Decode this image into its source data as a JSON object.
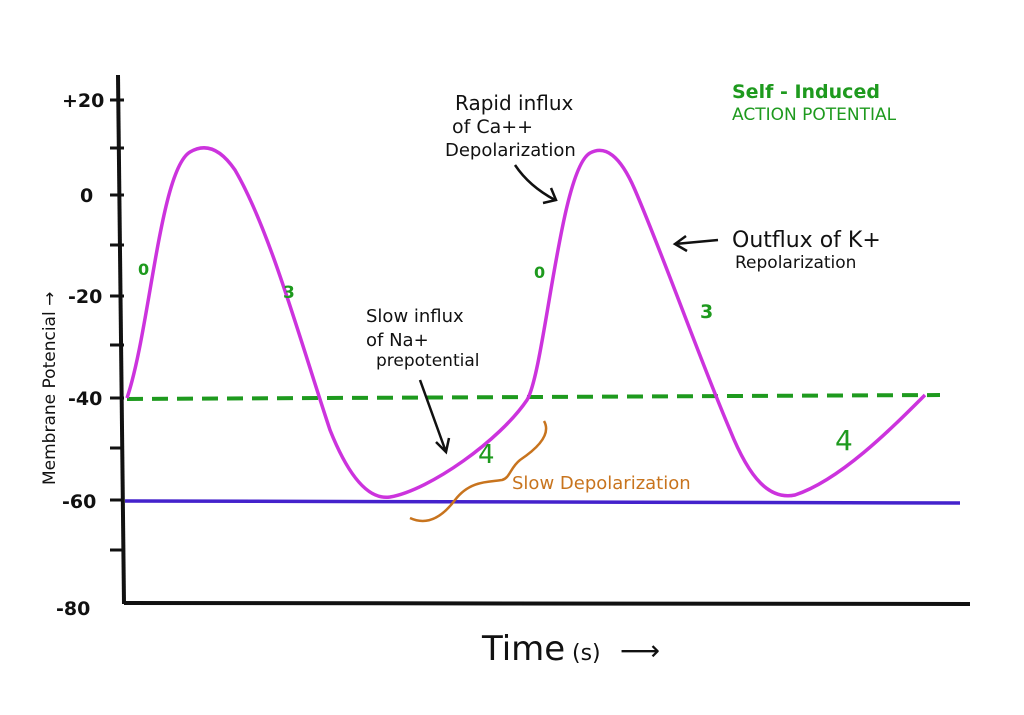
{
  "title": {
    "line1": "Self - Induced",
    "line2": "ACTION POTENTIAL"
  },
  "y_axis": {
    "label": "Membrane  Potencial →",
    "ticks": [
      "+20",
      "0",
      "-20",
      "-40",
      "-60",
      "-80"
    ]
  },
  "x_axis": {
    "label_main": "Time",
    "label_unit": "(s)",
    "arrow": "⟶"
  },
  "phase_labels": {
    "rise1": "0",
    "fall1": "3",
    "rise2": "0",
    "fall2": "3",
    "slow1": "4",
    "slow2": "4"
  },
  "annotations": {
    "calcium": [
      "Rapid influx",
      "of Ca++",
      "Depolarization"
    ],
    "potassium": [
      "Outflux of K+",
      "Repolarization"
    ],
    "sodium": [
      "Slow influx",
      "of Na+",
      "prepotential"
    ],
    "slow_depol": "Slow Depolarization"
  },
  "colors": {
    "curve": "#cc33dd",
    "threshold": "#1e9a1e",
    "resting": "#4422cc",
    "phase_text": "#1e9a1e",
    "slow_depol": "#c8741e",
    "ink": "#111111"
  }
}
